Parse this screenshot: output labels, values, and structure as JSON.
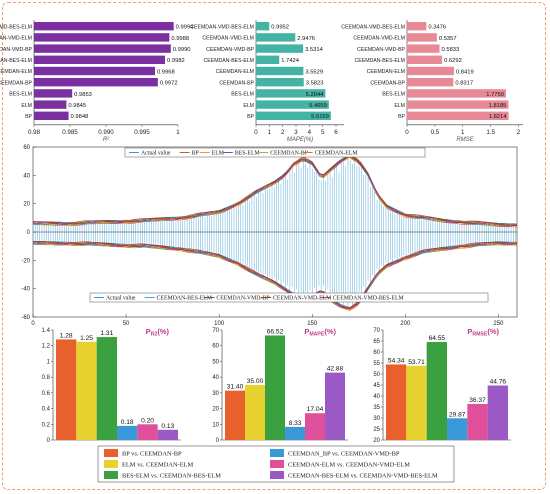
{
  "chart_data": [
    {
      "type": "bar",
      "orientation": "horizontal",
      "categories": [
        "CEEMDAN-VMD-BES-ELM",
        "CEEMDAN-VMD-ELM",
        "CEEMDAN-VMD-BP",
        "CEEMDAN-BES-ELM",
        "CEEMDAN-ELM",
        "CEEMDAN-BP",
        "BES-ELM",
        "ELM",
        "BP"
      ],
      "values": [
        0.9994,
        0.9988,
        0.999,
        0.9982,
        0.9968,
        0.9972,
        0.9853,
        0.9845,
        0.9848
      ],
      "value_labels": [
        "0.9994",
        "0.9988",
        "0.9990",
        "0.9982",
        "0.9968",
        "0.9972",
        "0.9853",
        "0.9845",
        "0.9848"
      ],
      "xlabel": "R²",
      "xlim": [
        0.98,
        1.0
      ],
      "xticks": [
        "0.98",
        "0.985",
        "0.990",
        "0.995",
        "1"
      ],
      "color": "#7b2fa0"
    },
    {
      "type": "bar",
      "orientation": "horizontal",
      "categories": [
        "CEEMDAN-VMD-BES-ELM",
        "CEEMDAN-VMD-ELM",
        "CEEMDAN-VMD-BP",
        "CEEMDAN-BES-ELM",
        "CEEMDAN-ELM",
        "CEEMDAN-BP",
        "BES-ELM",
        "ELM",
        "BP"
      ],
      "values": [
        0.9952,
        2.9476,
        3.5314,
        1.7424,
        3.5529,
        3.5823,
        5.2044,
        5.4659,
        5.6159
      ],
      "value_labels": [
        "0.9952",
        "2.9476",
        "3.5314",
        "1.7424",
        "3.5529",
        "3.5823",
        "5.2044",
        "5.4659",
        "5.6159"
      ],
      "xlabel": "MAPE(%)",
      "xlim": [
        0,
        6.6
      ],
      "xticks": [
        "0",
        "1",
        "2",
        "3",
        "4",
        "5",
        "6"
      ],
      "color": "#45b3a3"
    },
    {
      "type": "bar",
      "orientation": "horizontal",
      "categories": [
        "CEEMDAN-VMD-BES-ELM",
        "CEEMDAN-VMD-ELM",
        "CEEMDAN-VMD-BP",
        "CEEMDAN-BES-ELM",
        "CEEMDAN-ELM",
        "CEEMDAN-BP",
        "BES-ELM",
        "ELM",
        "BP"
      ],
      "values": [
        0.3476,
        0.5357,
        0.5833,
        0.6292,
        0.8419,
        0.8317,
        1.775,
        1.8185,
        1.8214
      ],
      "value_labels": [
        "0.3476",
        "0.5357",
        "0.5833",
        "0.6292",
        "0.8419",
        "0.8317",
        "1.7750",
        "1.8185",
        "1.8214"
      ],
      "xlabel": "RMSE",
      "xlim": [
        0,
        2.08
      ],
      "xticks": [
        "0",
        "0.5",
        "1",
        "1.5",
        "2"
      ],
      "color": "#e88a96"
    },
    {
      "type": "line",
      "xlim": [
        0,
        260
      ],
      "ylim": [
        -60,
        60
      ],
      "xticks": [
        0,
        50,
        100,
        150,
        200,
        250
      ],
      "yticks": [
        60,
        40,
        20,
        0,
        -20,
        -40,
        -60
      ],
      "legend_top": [
        "Actual value",
        "BP",
        "ELM",
        "BES-ELM",
        "CEEMDAN-BP",
        "CEEMDAN-ELM"
      ],
      "legend_bottom": [
        "Actual value",
        "CEEMDAN-BES-ELM",
        "CEEMDAN-VMD-BP",
        "CEEMDAN-VMD-ELM",
        "CEEMDAN-VMD-BES-ELM"
      ],
      "envelope": {
        "x": [
          0,
          20,
          40,
          60,
          80,
          100,
          110,
          120,
          130,
          135,
          140,
          145,
          150,
          155,
          160,
          165,
          170,
          175,
          180,
          185,
          190,
          200,
          210,
          220,
          230,
          240,
          250,
          260
        ],
        "upper": [
          6,
          6,
          7,
          8,
          10,
          14,
          20,
          28,
          35,
          40,
          48,
          52,
          48,
          38,
          44,
          50,
          54,
          50,
          40,
          26,
          18,
          12,
          10,
          8,
          7,
          6,
          5,
          5
        ],
        "lower": [
          -8,
          -8,
          -9,
          -10,
          -12,
          -17,
          -22,
          -30,
          -36,
          -40,
          -44,
          -48,
          -46,
          -42,
          -48,
          -52,
          -54,
          -50,
          -40,
          -30,
          -24,
          -18,
          -14,
          -12,
          -10,
          -9,
          -8,
          -8
        ]
      },
      "series_colors": {
        "Actual value": "#4a90d9",
        "BP": "#e05030",
        "ELM": "#f0a020",
        "BES-ELM": "#8e44ad",
        "CEEMDAN-BP": "#88c448",
        "CEEMDAN-ELM": "#d07a20",
        "CEEMDAN-BES-ELM": "#40a0e0",
        "CEEMDAN-VMD-BP": "#555555",
        "CEEMDAN-VMD-ELM": "#8b4513",
        "CEEMDAN-VMD-BES-ELM": "#c83060"
      }
    },
    {
      "type": "bar",
      "title": "P_R2(%)",
      "ylim": [
        0,
        1.4
      ],
      "yticks": [
        "0",
        "0.2",
        "0.4",
        "0.6",
        "0.8",
        "1",
        "1.2",
        "1.4"
      ],
      "values": [
        1.28,
        1.25,
        1.31,
        0.18,
        0.2,
        0.13
      ],
      "value_labels": [
        "1.28",
        "1.25",
        "1.31",
        "0.18",
        "0.20",
        "0.13"
      ]
    },
    {
      "type": "bar",
      "title": "P_MAPE(%)",
      "ylim": [
        0,
        70
      ],
      "yticks": [
        "0",
        "10",
        "20",
        "30",
        "40",
        "50",
        "60",
        "70"
      ],
      "values": [
        31.4,
        35.0,
        66.52,
        8.33,
        17.04,
        42.88
      ],
      "value_labels": [
        "31.40",
        "35.00",
        "66.52",
        "8.33",
        "17.04",
        "42.88"
      ]
    },
    {
      "type": "bar",
      "title": "P_RMSE(%)",
      "ylim": [
        20,
        70
      ],
      "yticks": [
        "20",
        "25",
        "30",
        "35",
        "40",
        "45",
        "50",
        "55",
        "60",
        "65",
        "70"
      ],
      "values": [
        54.34,
        53.71,
        64.55,
        29.87,
        36.37,
        44.76
      ],
      "value_labels": [
        "54.34",
        "53.71",
        "64.55",
        "29.87",
        "36.37",
        "44.76"
      ]
    }
  ],
  "comparison_legend": [
    {
      "label": "BP vs. CEEMDAN-BP",
      "color": "#e8602c"
    },
    {
      "label": "CEEMDAN_BP vs. CEEMDAN-VMD-BP",
      "color": "#3a9ad9"
    },
    {
      "label": "ELM vs. CEEMDAN-ELM",
      "color": "#e8d230"
    },
    {
      "label": "CEEMDAN-ELM  vs. CEEMDAN-VMD-ELM",
      "color": "#e0509a"
    },
    {
      "label": "BES-ELM vs. CEEMDAN-BES-ELM",
      "color": "#3aa040"
    },
    {
      "label": "CEEMDAN-BES-ELM vs. CEEMDAN-VMD-BES-ELM",
      "color": "#9b59c6"
    }
  ]
}
